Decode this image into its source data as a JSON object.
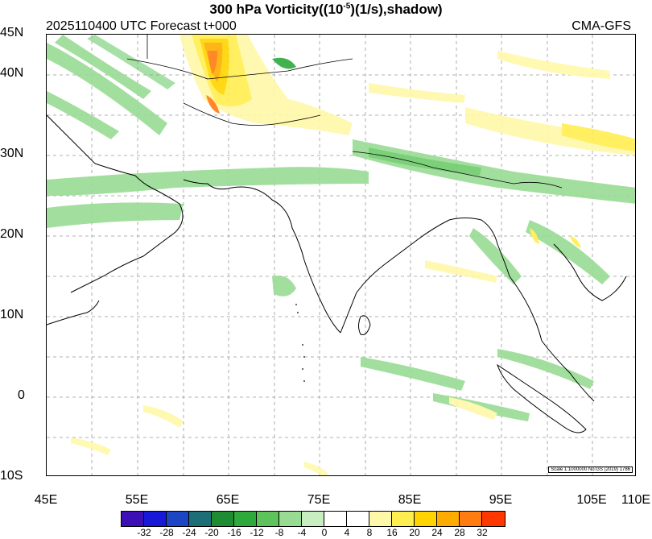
{
  "title": {
    "main": "300 hPa Vorticity((10",
    "exp": "-5",
    "tail": ")(1/s),shadow)"
  },
  "subtitle": {
    "left": "2025110400 UTC Forecast t+000",
    "right": "CMA-GFS"
  },
  "lat_labels": [
    "45N",
    "40N",
    "30N",
    "20N",
    "10N",
    "0",
    "10S"
  ],
  "lon_labels": [
    "45E",
    "55E",
    "65E",
    "75E",
    "85E",
    "95E",
    "105E",
    "110E"
  ],
  "scale_note": "Scale 1:1000000 No:GS (2019) 1786",
  "colorbar": {
    "labels": [
      "-32",
      "-28",
      "-24",
      "-20",
      "-16",
      "-12",
      "-8",
      "-4",
      "0",
      "4",
      "8",
      "16",
      "20",
      "24",
      "28",
      "32"
    ],
    "colors": [
      "#3c10b4",
      "#1818d8",
      "#1c46c4",
      "#1e6e78",
      "#1e8c32",
      "#2eaa3c",
      "#5cc45a",
      "#98dc94",
      "#c8eec0",
      "#ffffff",
      "#ffffff",
      "#fff8a8",
      "#ffee50",
      "#ffd400",
      "#ffac00",
      "#ff7c10",
      "#ff3800"
    ]
  }
}
